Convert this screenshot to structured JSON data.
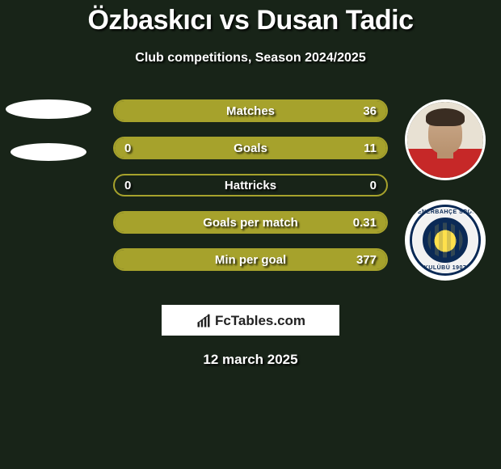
{
  "colors": {
    "page_bg": "#182418",
    "title_color": "#ffffff",
    "subtitle_color": "#ffffff",
    "accent": "#a6a22c",
    "bar_text": "#ffffff"
  },
  "typography": {
    "title_fontsize": 34,
    "subtitle_fontsize": 16,
    "bar_label_fontsize": 15,
    "bar_value_fontsize": 15,
    "date_fontsize": 17
  },
  "header": {
    "title": "Özbaskıcı vs Dusan Tadic",
    "subtitle": "Club competitions, Season 2024/2025"
  },
  "players": {
    "left": {
      "name": "Özbaskıcı",
      "avatar_placeholder": true
    },
    "right": {
      "name": "Dusan Tadic",
      "club_badge": {
        "top_text": "FENERBAHÇE SPOR",
        "bottom_text": "KULÜBÜ 1907",
        "ring_color": "#0b2a56",
        "center_yellow": "#ffe14d",
        "center_navy": "#0b2a56"
      }
    }
  },
  "bars": [
    {
      "label": "Matches",
      "left": "",
      "right": "36",
      "left_pct": 0,
      "right_pct": 100
    },
    {
      "label": "Goals",
      "left": "0",
      "right": "11",
      "left_pct": 0,
      "right_pct": 100
    },
    {
      "label": "Hattricks",
      "left": "0",
      "right": "0",
      "left_pct": 0,
      "right_pct": 0
    },
    {
      "label": "Goals per match",
      "left": "",
      "right": "0.31",
      "left_pct": 0,
      "right_pct": 100
    },
    {
      "label": "Min per goal",
      "left": "",
      "right": "377",
      "left_pct": 0,
      "right_pct": 100
    }
  ],
  "bar_style": {
    "height": 28,
    "border_radius": 16,
    "gap": 18,
    "border_color": "#a6a22c",
    "fill_color": "#a6a22c",
    "empty_color": "transparent"
  },
  "footer": {
    "logo_text": "FcTables.com",
    "date": "12 march 2025"
  }
}
